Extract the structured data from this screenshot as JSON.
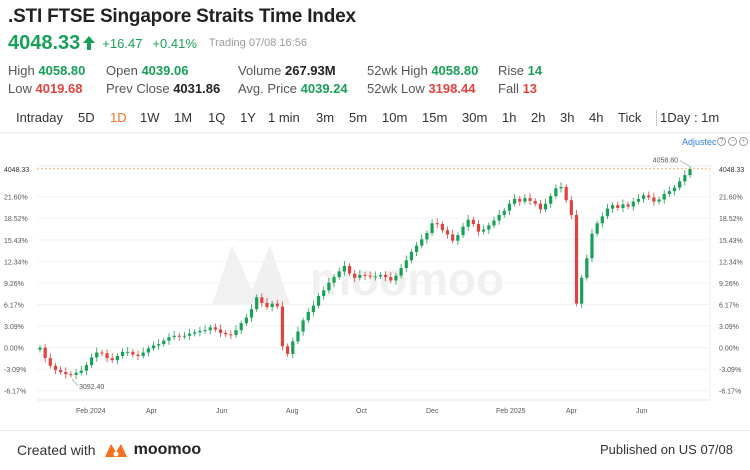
{
  "header": {
    "title": ".STI FTSE Singapore Straits Time Index",
    "price": "4048.33",
    "change": "+16.47",
    "change_pct": "+0.41%",
    "status": "Trading",
    "datetime": "07/08 16:56"
  },
  "stats": {
    "high_label": "High",
    "high": "4058.80",
    "low_label": "Low",
    "low": "4019.68",
    "open_label": "Open",
    "open": "4039.06",
    "prev_close_label": "Prev Close",
    "prev_close": "4031.86",
    "volume_label": "Volume",
    "volume": "267.93M",
    "avg_price_label": "Avg. Price",
    "avg_price": "4039.24",
    "wk52_high_label": "52wk High",
    "wk52_high": "4058.80",
    "wk52_low_label": "52wk Low",
    "wk52_low": "3198.44",
    "rise_label": "Rise",
    "rise": "14",
    "fall_label": "Fall",
    "fall": "13"
  },
  "tabs": [
    "Intraday",
    "5D",
    "1D",
    "1W",
    "1M",
    "1Q",
    "1Y",
    "1 min",
    "3m",
    "5m",
    "10m",
    "15m",
    "30m",
    "1h",
    "2h",
    "3h",
    "4h",
    "Tick",
    "1Day : 1m"
  ],
  "active_tab": "1D",
  "toolbar": {
    "adjust_label": "Adjustec"
  },
  "colors": {
    "up": "#18a058",
    "down": "#e0433f",
    "accent": "#f37021",
    "last_line": "#f5a35c"
  },
  "chart_data": {
    "type": "candlestick",
    "y_axis": "percent change",
    "y_ticks": [
      "-6.17%",
      "-3.09%",
      "0.00%",
      "3.09%",
      "6.17%",
      "9.26%",
      "12.34%",
      "15.43%",
      "18.52%",
      "21.60%"
    ],
    "y_tick_values": [
      -6.17,
      -3.09,
      0.0,
      3.09,
      6.17,
      9.26,
      12.34,
      15.43,
      18.52,
      21.6
    ],
    "ylim": [
      -7.5,
      26.0
    ],
    "x_ticks": [
      "Feb 2024",
      "Apr",
      "Jun",
      "Aug",
      "Oct",
      "Dec",
      "Feb 2025",
      "Apr",
      "Jun"
    ],
    "last_price_label": "4048.33",
    "last_price_pct": 25.6,
    "annotations": [
      {
        "text": "4058.80",
        "pct": 25.9
      },
      {
        "text": "3092.40",
        "pct": -4.2
      }
    ],
    "series": [
      {
        "values": [
          0.0,
          -1.5,
          -2.6,
          -3.2,
          -3.5,
          -3.8,
          -3.9,
          -3.6,
          -3.3,
          -2.5,
          -1.4,
          -0.7,
          -0.8,
          -1.5,
          -1.8,
          -1.2,
          -0.6,
          -0.6,
          -1.0,
          -1.2,
          -0.7,
          -0.1,
          0.3,
          0.5,
          1.0,
          1.5,
          1.7,
          1.6,
          1.7,
          2.0,
          2.2,
          2.4,
          2.5,
          2.9,
          2.6,
          2.1,
          1.9,
          1.8,
          2.5,
          3.5,
          4.3,
          5.5,
          7.2,
          6.4,
          5.8,
          6.3,
          5.9,
          0.2,
          -0.9,
          0.9,
          2.3,
          3.9,
          5.1,
          6.0,
          7.4,
          8.2,
          9.3,
          10.1,
          10.9,
          11.7,
          10.6,
          10.0,
          10.4,
          10.3,
          10.2,
          10.2,
          10.4,
          10.1,
          9.6,
          10.3,
          11.4,
          12.5,
          13.7,
          14.6,
          15.5,
          16.4,
          17.8,
          17.7,
          16.8,
          16.2,
          15.3,
          16.1,
          17.3,
          18.3,
          17.7,
          16.6,
          16.9,
          17.5,
          18.2,
          19.0,
          19.6,
          20.6,
          21.3,
          20.9,
          21.4,
          21.0,
          20.6,
          19.8,
          20.6,
          21.7,
          22.8,
          23.0,
          21.1,
          19.0,
          6.3,
          10.0,
          12.8,
          16.3,
          17.8,
          18.8,
          19.9,
          20.4,
          20.0,
          20.5,
          20.2,
          20.9,
          21.3,
          21.8,
          21.5,
          20.9,
          21.2,
          22.0,
          22.4,
          22.9,
          23.8,
          24.7,
          25.6
        ]
      }
    ]
  }
}
